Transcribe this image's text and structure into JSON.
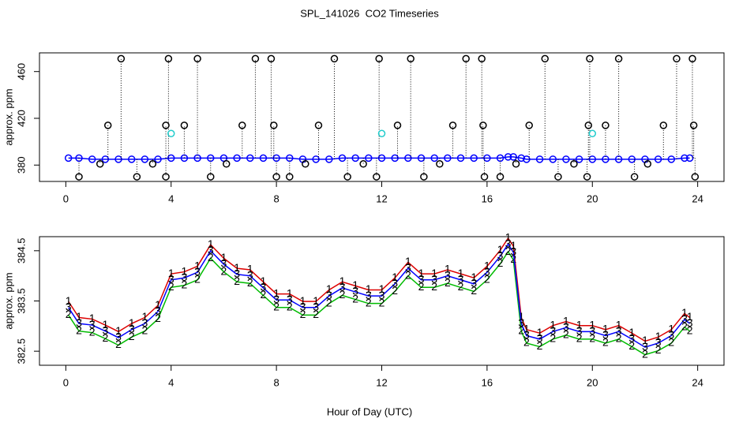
{
  "chart_data": [
    {
      "type": "scatter",
      "title": "SPL_141026  CO2 Timeseries",
      "ylabel": "approx. ppm",
      "xlim": [
        -1,
        25
      ],
      "xticks": [
        0,
        4,
        8,
        12,
        16,
        20,
        24
      ],
      "ylim": [
        366,
        476
      ],
      "yticks": [
        380,
        420,
        460
      ],
      "series": [
        {
          "color": "#0000ff",
          "connect": true,
          "x": [
            0.1,
            0.5,
            1.0,
            1.5,
            2.0,
            2.5,
            3.0,
            3.5,
            4.0,
            4.5,
            5.0,
            5.5,
            6.0,
            6.5,
            7.0,
            7.5,
            8.0,
            8.5,
            9.0,
            9.5,
            10.0,
            10.5,
            11.0,
            11.5,
            12.0,
            12.5,
            13.0,
            13.5,
            14.0,
            14.5,
            15.0,
            15.5,
            16.0,
            16.5,
            16.8,
            17.0,
            17.3,
            17.5,
            18.0,
            18.5,
            19.0,
            19.5,
            20.0,
            20.5,
            21.0,
            21.5,
            22.0,
            22.5,
            23.0,
            23.5,
            23.7
          ],
          "values": [
            386,
            386,
            385,
            385,
            385,
            385,
            385,
            385,
            386,
            386,
            386,
            386,
            386,
            386,
            386,
            386,
            386,
            386,
            385,
            385,
            385,
            386,
            386,
            386,
            386,
            386,
            386,
            386,
            386,
            386,
            386,
            386,
            386,
            386,
            387,
            387,
            386,
            385,
            385,
            385,
            385,
            385,
            385,
            385,
            385,
            385,
            385,
            385,
            385,
            386,
            386
          ]
        },
        {
          "color": "#000000",
          "droplines": true,
          "x": [
            0.5,
            1.3,
            1.6,
            2.1,
            2.7,
            3.3,
            3.8,
            3.8,
            3.9,
            4.5,
            5.0,
            5.5,
            6.1,
            6.7,
            7.2,
            7.8,
            7.9,
            8.0,
            8.5,
            9.1,
            9.6,
            10.2,
            10.7,
            11.3,
            11.8,
            11.9,
            12.6,
            13.1,
            13.6,
            14.2,
            14.7,
            15.2,
            15.8,
            15.85,
            15.9,
            16.5,
            17.1,
            17.6,
            18.2,
            18.7,
            19.3,
            19.8,
            19.85,
            19.9,
            20.5,
            21.0,
            21.6,
            22.1,
            22.7,
            23.2,
            23.8,
            23.85,
            23.9
          ],
          "values": [
            370,
            381,
            414,
            471,
            370,
            381,
            370,
            414,
            471,
            414,
            471,
            370,
            381,
            414,
            471,
            471,
            414,
            370,
            370,
            381,
            414,
            471,
            370,
            381,
            370,
            471,
            414,
            471,
            370,
            381,
            414,
            471,
            471,
            414,
            370,
            370,
            381,
            414,
            471,
            370,
            381,
            370,
            414,
            471,
            414,
            471,
            370,
            381,
            414,
            471,
            471,
            414,
            370
          ]
        },
        {
          "color": "#22cccc",
          "x": [
            4.0,
            12.0,
            20.0
          ],
          "values": [
            407,
            407,
            407
          ]
        }
      ]
    },
    {
      "type": "line",
      "ylabel": "approx. ppm",
      "xlabel": "Hour of Day (UTC)",
      "xlim": [
        -1,
        25
      ],
      "xticks": [
        0,
        4,
        8,
        12,
        16,
        20,
        24
      ],
      "ylim": [
        382.22,
        384.78
      ],
      "yticks": [
        382.5,
        383.5,
        384.5
      ],
      "x": [
        0.1,
        0.5,
        1.0,
        1.5,
        2.0,
        2.5,
        3.0,
        3.5,
        4.0,
        4.5,
        5.0,
        5.5,
        6.0,
        6.5,
        7.0,
        7.5,
        8.0,
        8.5,
        9.0,
        9.5,
        10.0,
        10.5,
        11.0,
        11.5,
        12.0,
        12.5,
        13.0,
        13.5,
        14.0,
        14.5,
        15.0,
        15.5,
        16.0,
        16.5,
        16.8,
        17.0,
        17.3,
        17.5,
        18.0,
        18.5,
        19.0,
        19.5,
        20.0,
        20.5,
        21.0,
        21.5,
        22.0,
        22.5,
        23.0,
        23.5,
        23.7
      ],
      "series": [
        {
          "name": "1",
          "color": "#dd0000",
          "values": [
            383.49,
            383.17,
            383.14,
            383.02,
            382.89,
            383.05,
            383.17,
            383.41,
            384.04,
            384.08,
            384.19,
            384.62,
            384.35,
            384.15,
            384.12,
            383.88,
            383.64,
            383.64,
            383.49,
            383.49,
            383.72,
            383.88,
            383.8,
            383.72,
            383.72,
            383.96,
            384.27,
            384.04,
            384.04,
            384.12,
            384.04,
            383.96,
            384.19,
            384.51,
            384.75,
            384.59,
            383.17,
            382.93,
            382.86,
            383.01,
            383.09,
            383.01,
            383.01,
            382.93,
            383.01,
            382.86,
            382.7,
            382.78,
            382.93,
            383.25,
            383.17
          ]
        },
        {
          "name": "2",
          "color": "#00bb00",
          "values": [
            383.22,
            382.9,
            382.87,
            382.75,
            382.62,
            382.78,
            382.9,
            383.14,
            383.77,
            383.81,
            383.92,
            384.35,
            384.08,
            383.88,
            383.85,
            383.61,
            383.37,
            383.37,
            383.22,
            383.22,
            383.45,
            383.61,
            383.53,
            383.45,
            383.45,
            383.69,
            384.0,
            383.77,
            383.77,
            383.85,
            383.77,
            383.69,
            383.92,
            384.24,
            384.48,
            384.32,
            382.9,
            382.66,
            382.59,
            382.74,
            382.82,
            382.74,
            382.74,
            382.66,
            382.74,
            382.59,
            382.43,
            382.51,
            382.66,
            382.98,
            382.9
          ]
        },
        {
          "name": "3",
          "color": "#0000ff",
          "values": [
            383.37,
            383.05,
            383.02,
            382.9,
            382.77,
            382.93,
            383.05,
            383.29,
            383.92,
            383.96,
            384.07,
            384.5,
            384.23,
            384.03,
            384.0,
            383.76,
            383.52,
            383.52,
            383.37,
            383.37,
            383.6,
            383.76,
            383.68,
            383.6,
            383.6,
            383.84,
            384.15,
            383.92,
            383.92,
            384.0,
            383.92,
            383.84,
            384.07,
            384.39,
            384.63,
            384.47,
            383.05,
            382.81,
            382.74,
            382.89,
            382.97,
            382.89,
            382.89,
            382.81,
            382.89,
            382.74,
            382.58,
            382.66,
            382.81,
            383.13,
            383.05
          ]
        }
      ]
    }
  ]
}
